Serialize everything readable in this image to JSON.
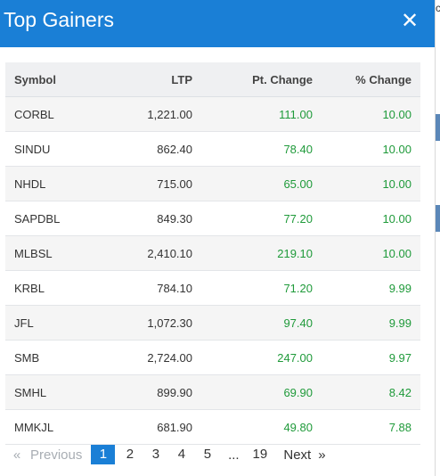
{
  "modal": {
    "title": "Top Gainers",
    "close_icon": "close-icon"
  },
  "table": {
    "headers": [
      "Symbol",
      "LTP",
      "Pt. Change",
      "% Change"
    ],
    "rows": [
      {
        "symbol": "CORBL",
        "ltp": "1,221.00",
        "pt_change": "111.00",
        "pct_change": "10.00"
      },
      {
        "symbol": "SINDU",
        "ltp": "862.40",
        "pt_change": "78.40",
        "pct_change": "10.00"
      },
      {
        "symbol": "NHDL",
        "ltp": "715.00",
        "pt_change": "65.00",
        "pct_change": "10.00"
      },
      {
        "symbol": "SAPDBL",
        "ltp": "849.30",
        "pt_change": "77.20",
        "pct_change": "10.00"
      },
      {
        "symbol": "MLBSL",
        "ltp": "2,410.10",
        "pt_change": "219.10",
        "pct_change": "10.00"
      },
      {
        "symbol": "KRBL",
        "ltp": "784.10",
        "pt_change": "71.20",
        "pct_change": "9.99"
      },
      {
        "symbol": "JFL",
        "ltp": "1,072.30",
        "pt_change": "97.40",
        "pct_change": "9.99"
      },
      {
        "symbol": "SMB",
        "ltp": "2,724.00",
        "pt_change": "247.00",
        "pct_change": "9.97"
      },
      {
        "symbol": "SMHL",
        "ltp": "899.90",
        "pt_change": "69.90",
        "pct_change": "8.42"
      },
      {
        "symbol": "MMKJL",
        "ltp": "681.90",
        "pt_change": "49.80",
        "pct_change": "7.88"
      }
    ]
  },
  "pagination": {
    "prev_arrow": "«",
    "prev_label": "Previous",
    "pages": [
      "1",
      "2",
      "3",
      "4",
      "5"
    ],
    "active_page": "1",
    "ellipsis": "...",
    "last_page": "19",
    "next_label": "Next",
    "next_arrow": "»"
  },
  "colors": {
    "header_blue": "#1a7fd6",
    "positive_green": "#1f9a3a"
  }
}
